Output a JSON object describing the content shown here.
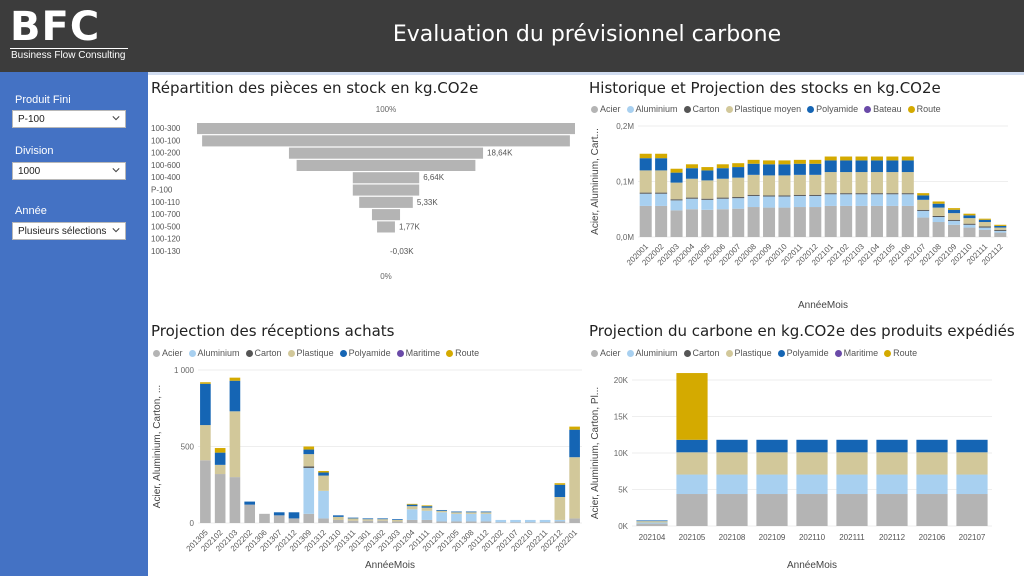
{
  "header": {
    "logo": "BFC",
    "logo_subtitle": "Business Flow Consulting",
    "title": "Evaluation du prévisionnel carbone"
  },
  "filters": {
    "produit": {
      "label": "Produit Fini",
      "value": "P-100"
    },
    "division": {
      "label": "Division",
      "value": "1000"
    },
    "annee": {
      "label": "Année",
      "value": "Plusieurs sélections"
    }
  },
  "colors": {
    "Acier": "#b4b4b4",
    "Aluminium": "#a8d0f0",
    "Carton": "#555555",
    "Plastique": "#d2c89a",
    "Polyamide": "#1565b4",
    "Bateau": "#6a4aa8",
    "Maritime": "#6a4aa8",
    "Route": "#d4aa00"
  },
  "chart_data": [
    {
      "id": "funnel",
      "type": "bar",
      "title": "Répartition des pièces en stock en kg.CO2e",
      "top_label": "100%",
      "bottom_label": "0%",
      "categories": [
        "100-300",
        "100-100",
        "100-200",
        "100-600",
        "100-400",
        "P-100",
        "100-110",
        "100-700",
        "100-500",
        "100-120",
        "100-130"
      ],
      "values": [
        74,
        72,
        38,
        35,
        13,
        13,
        10.5,
        5.5,
        3.5,
        0,
        0
      ],
      "value_labels": [
        "",
        "",
        "18,64K",
        "",
        "6,64K",
        "",
        "5,33K",
        "",
        "1,77K",
        "",
        "-0,03K"
      ],
      "max": 74
    },
    {
      "id": "stocks",
      "type": "bar",
      "title": "Historique et Projection des stocks en kg.CO2e",
      "legend": [
        "Acier",
        "Aluminium",
        "Carton",
        "Plastique moyen",
        "Polyamide",
        "Bateau",
        "Route"
      ],
      "series_keys": [
        "Acier",
        "Aluminium",
        "Carton",
        "Plastique",
        "Polyamide",
        "Bateau",
        "Route"
      ],
      "ylabel": "Acier, Aluminium, Cart...",
      "xlabel": "AnnéeMois",
      "yticks": [
        "0,0M",
        "0,1M",
        "0,2M"
      ],
      "ymax": 0.2,
      "categories": [
        "202001",
        "202002",
        "202003",
        "202004",
        "202005",
        "202006",
        "202007",
        "202008",
        "202009",
        "202010",
        "202011",
        "202012",
        "202101",
        "202102",
        "202103",
        "202104",
        "202105",
        "202106",
        "202107",
        "202108",
        "202109",
        "202110",
        "202111",
        "202112"
      ],
      "series": [
        {
          "name": "Acier",
          "values": [
            0.056,
            0.056,
            0.048,
            0.05,
            0.049,
            0.05,
            0.051,
            0.054,
            0.053,
            0.053,
            0.054,
            0.054,
            0.056,
            0.056,
            0.056,
            0.056,
            0.056,
            0.056,
            0.035,
            0.027,
            0.022,
            0.017,
            0.013,
            0.008
          ]
        },
        {
          "name": "Aluminium",
          "values": [
            0.022,
            0.022,
            0.018,
            0.019,
            0.018,
            0.019,
            0.019,
            0.02,
            0.02,
            0.02,
            0.02,
            0.02,
            0.021,
            0.021,
            0.021,
            0.021,
            0.021,
            0.021,
            0.012,
            0.009,
            0.007,
            0.005,
            0.004,
            0.003
          ]
        },
        {
          "name": "Carton",
          "values": [
            0.002,
            0.002,
            0.002,
            0.002,
            0.002,
            0.002,
            0.002,
            0.002,
            0.002,
            0.002,
            0.002,
            0.002,
            0.002,
            0.002,
            0.002,
            0.002,
            0.002,
            0.002,
            0.002,
            0.002,
            0.002,
            0.002,
            0.002,
            0.002
          ]
        },
        {
          "name": "Plastique",
          "values": [
            0.04,
            0.04,
            0.03,
            0.034,
            0.033,
            0.034,
            0.035,
            0.036,
            0.036,
            0.036,
            0.036,
            0.036,
            0.038,
            0.038,
            0.038,
            0.038,
            0.038,
            0.038,
            0.018,
            0.015,
            0.012,
            0.01,
            0.008,
            0.004
          ]
        },
        {
          "name": "Polyamide",
          "values": [
            0.022,
            0.022,
            0.018,
            0.019,
            0.018,
            0.019,
            0.019,
            0.02,
            0.02,
            0.02,
            0.02,
            0.02,
            0.021,
            0.021,
            0.021,
            0.021,
            0.021,
            0.021,
            0.008,
            0.007,
            0.006,
            0.005,
            0.004,
            0.003
          ]
        },
        {
          "name": "Bateau",
          "values": [
            0,
            0,
            0,
            0,
            0,
            0,
            0,
            0,
            0,
            0,
            0,
            0,
            0,
            0,
            0,
            0,
            0,
            0,
            0,
            0,
            0,
            0,
            0,
            0
          ]
        },
        {
          "name": "Route",
          "values": [
            0.008,
            0.008,
            0.007,
            0.007,
            0.006,
            0.007,
            0.007,
            0.007,
            0.007,
            0.007,
            0.007,
            0.007,
            0.007,
            0.007,
            0.007,
            0.007,
            0.007,
            0.007,
            0.004,
            0.004,
            0.003,
            0.003,
            0.002,
            0.002
          ]
        }
      ]
    },
    {
      "id": "receptions",
      "type": "bar",
      "title": "Projection des réceptions achats",
      "legend": [
        "Acier",
        "Aluminium",
        "Carton",
        "Plastique",
        "Polyamide",
        "Maritime",
        "Route"
      ],
      "series_keys": [
        "Acier",
        "Aluminium",
        "Carton",
        "Plastique",
        "Polyamide",
        "Maritime",
        "Route"
      ],
      "ylabel": "Acier, Aluminium, Carton, ...",
      "xlabel": "AnnéeMois",
      "yticks": [
        "0",
        "500",
        "1 000"
      ],
      "ymax": 1000,
      "categories": [
        "201305",
        "202102",
        "202103",
        "202202",
        "201306",
        "201307",
        "202112",
        "201309",
        "201312",
        "201310",
        "201311",
        "201301",
        "201302",
        "201303",
        "201204",
        "201111",
        "201201",
        "201205",
        "201308",
        "201112",
        "201202",
        "202107",
        "202210",
        "202211",
        "202212",
        "202201"
      ],
      "series": [
        {
          "name": "Acier",
          "values": [
            410,
            320,
            300,
            120,
            60,
            50,
            30,
            60,
            30,
            20,
            15,
            15,
            15,
            10,
            20,
            20,
            10,
            10,
            10,
            10,
            5,
            5,
            5,
            5,
            10,
            30
          ]
        },
        {
          "name": "Aluminium",
          "values": [
            0,
            0,
            0,
            0,
            0,
            0,
            0,
            300,
            180,
            0,
            0,
            0,
            0,
            0,
            70,
            60,
            60,
            50,
            50,
            50,
            15,
            15,
            15,
            15,
            10,
            0
          ]
        },
        {
          "name": "Carton",
          "values": [
            0,
            0,
            0,
            0,
            0,
            0,
            0,
            10,
            0,
            0,
            0,
            0,
            0,
            0,
            0,
            0,
            0,
            0,
            0,
            0,
            0,
            0,
            0,
            0,
            0,
            0
          ]
        },
        {
          "name": "Plastique",
          "values": [
            230,
            60,
            430,
            0,
            0,
            0,
            0,
            80,
            100,
            20,
            15,
            10,
            10,
            10,
            20,
            20,
            10,
            10,
            10,
            10,
            0,
            0,
            0,
            0,
            150,
            400
          ]
        },
        {
          "name": "Polyamide",
          "values": [
            270,
            80,
            200,
            20,
            0,
            20,
            40,
            30,
            20,
            10,
            5,
            5,
            5,
            5,
            10,
            10,
            5,
            5,
            5,
            5,
            0,
            0,
            0,
            0,
            80,
            180
          ]
        },
        {
          "name": "Maritime",
          "values": [
            0,
            0,
            0,
            0,
            0,
            0,
            0,
            0,
            0,
            0,
            0,
            0,
            0,
            0,
            0,
            0,
            0,
            0,
            0,
            0,
            0,
            0,
            0,
            0,
            0,
            0
          ]
        },
        {
          "name": "Route",
          "values": [
            10,
            30,
            20,
            0,
            0,
            0,
            0,
            20,
            10,
            0,
            0,
            0,
            0,
            0,
            5,
            5,
            0,
            0,
            0,
            0,
            0,
            0,
            0,
            0,
            10,
            20
          ]
        }
      ]
    },
    {
      "id": "expedies",
      "type": "bar",
      "title": "Projection du carbone en kg.CO2e des produits expédiés",
      "legend": [
        "Acier",
        "Aluminium",
        "Carton",
        "Plastique",
        "Polyamide",
        "Maritime",
        "Route"
      ],
      "series_keys": [
        "Acier",
        "Aluminium",
        "Carton",
        "Plastique",
        "Polyamide",
        "Maritime",
        "Route"
      ],
      "ylabel": "Acier, Aluminium, Carton, Pl...",
      "xlabel": "AnnéeMois",
      "yticks": [
        "0K",
        "5K",
        "10K",
        "15K",
        "20K"
      ],
      "ymax": 21000,
      "categories": [
        "202104",
        "202105",
        "202108",
        "202109",
        "202110",
        "202111",
        "202112",
        "202106",
        "202107"
      ],
      "series": [
        {
          "name": "Acier",
          "values": [
            350,
            4600,
            4600,
            4600,
            4600,
            4600,
            4600,
            4600,
            4600
          ]
        },
        {
          "name": "Aluminium",
          "values": [
            150,
            2800,
            2800,
            2800,
            2800,
            2800,
            2800,
            2800,
            2800
          ]
        },
        {
          "name": "Carton",
          "values": [
            0,
            0,
            0,
            0,
            0,
            0,
            0,
            0,
            0
          ]
        },
        {
          "name": "Plastique",
          "values": [
            200,
            3200,
            3200,
            3200,
            3200,
            3200,
            3200,
            3200,
            3200
          ]
        },
        {
          "name": "Polyamide",
          "values": [
            100,
            1800,
            1800,
            1800,
            1800,
            1800,
            1800,
            1800,
            1800
          ]
        },
        {
          "name": "Maritime",
          "values": [
            0,
            0,
            0,
            0,
            0,
            0,
            0,
            0,
            0
          ]
        },
        {
          "name": "Route",
          "values": [
            0,
            9600,
            0,
            0,
            0,
            0,
            0,
            0,
            0
          ]
        }
      ]
    }
  ]
}
